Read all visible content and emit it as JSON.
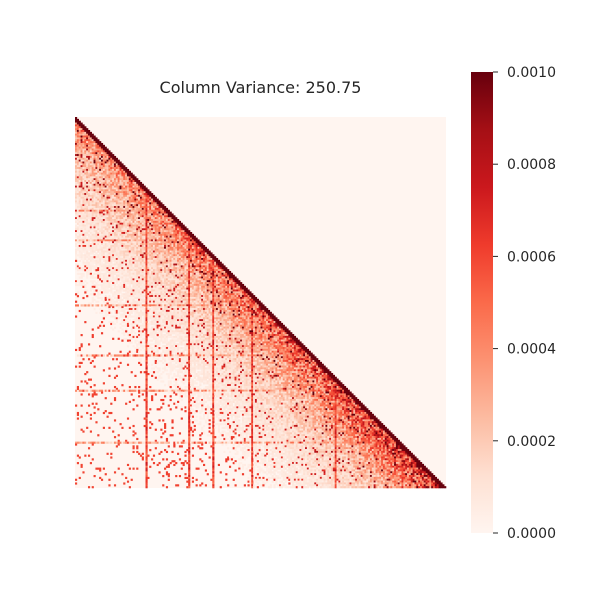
{
  "chart_data": {
    "type": "heatmap",
    "title": "Column Variance: 250.75",
    "xlabel": "",
    "ylabel": "",
    "mask": "upper-triangle",
    "colormap": "Reds",
    "colors": [
      "#fff5f0",
      "#fee0d2",
      "#fcbba1",
      "#fc9272",
      "#fb6a4a",
      "#ef3b2c",
      "#cb181d",
      "#a50f15",
      "#67000d"
    ],
    "vmin": 0.0,
    "vmax": 0.001,
    "colorbar": {
      "ticks": [
        0.0,
        0.0002,
        0.0004,
        0.0006,
        0.0008,
        0.001
      ],
      "tick_labels": [
        "0.0000",
        "0.0002",
        "0.0004",
        "0.0006",
        "0.0008",
        "0.0010"
      ]
    },
    "grid": false,
    "legend": "colorbar-right"
  }
}
